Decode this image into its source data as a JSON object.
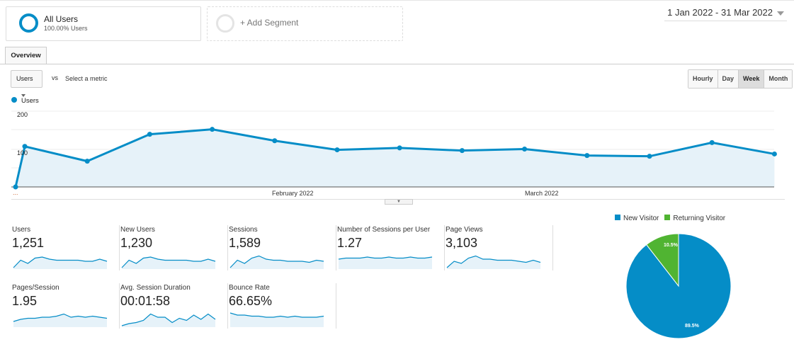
{
  "segments": {
    "active": {
      "name": "All Users",
      "sub": "100.00% Users"
    },
    "add_label": "+ Add Segment"
  },
  "date_range": "1 Jan 2022 - 31 Mar 2022",
  "tabs": [
    {
      "label": "Overview"
    }
  ],
  "controls": {
    "metric": "Users",
    "vs": "vs",
    "select_metric": "Select a metric",
    "granularity": [
      "Hourly",
      "Day",
      "Week",
      "Month"
    ],
    "active_granularity": "Week"
  },
  "colors": {
    "accent": "#058dc7",
    "green": "#50b432"
  },
  "chart_data": {
    "type": "area",
    "series": [
      {
        "name": "Users",
        "values": [
          0,
          107,
          68,
          139,
          152,
          122,
          98,
          103,
          96,
          100,
          83,
          81,
          117,
          87
        ]
      }
    ],
    "ylim": [
      0,
      200
    ],
    "yticks": [
      "100",
      "200"
    ],
    "xticks": [
      "...",
      "February 2022",
      "March 2022"
    ]
  },
  "metrics": [
    {
      "label": "Users",
      "value": "1,251",
      "spark": [
        0,
        7,
        4,
        9,
        10,
        8,
        7,
        7,
        7,
        7,
        6,
        6,
        8,
        6
      ]
    },
    {
      "label": "New Users",
      "value": "1,230",
      "spark": [
        0,
        7,
        4,
        9,
        10,
        8,
        7,
        7,
        7,
        7,
        6,
        6,
        8,
        6
      ]
    },
    {
      "label": "Sessions",
      "value": "1,589",
      "spark": [
        0,
        7,
        4,
        9,
        11,
        8,
        7,
        7,
        6,
        6,
        6,
        5,
        7,
        6
      ]
    },
    {
      "label": "Number of Sessions per User",
      "value": "1.27",
      "spark": [
        8,
        9,
        9,
        9,
        10,
        9,
        9,
        10,
        9,
        9,
        10,
        9,
        9,
        10
      ]
    },
    {
      "label": "Page Views",
      "value": "3,103",
      "spark": [
        0,
        6,
        4,
        9,
        11,
        8,
        8,
        7,
        7,
        7,
        6,
        5,
        7,
        5
      ]
    },
    {
      "label": "Pages/Session",
      "value": "1.95",
      "spark": [
        4,
        6,
        7,
        7,
        8,
        8,
        9,
        11,
        8,
        9,
        8,
        9,
        8,
        7
      ]
    },
    {
      "label": "Avg. Session Duration",
      "value": "00:01:58",
      "spark": [
        0,
        2,
        3,
        5,
        11,
        8,
        8,
        3,
        7,
        5,
        10,
        6,
        11,
        6
      ]
    },
    {
      "label": "Bounce Rate",
      "value": "66.65%",
      "spark": [
        12,
        10,
        10,
        9,
        9,
        8,
        8,
        9,
        8,
        9,
        8,
        8,
        8,
        9
      ]
    }
  ],
  "pie": {
    "slices": [
      {
        "name": "New Visitor",
        "value": 89.5,
        "label": "89.5%",
        "color": "#058dc7"
      },
      {
        "name": "Returning Visitor",
        "value": 10.5,
        "label": "10.5%",
        "color": "#50b432"
      }
    ]
  }
}
